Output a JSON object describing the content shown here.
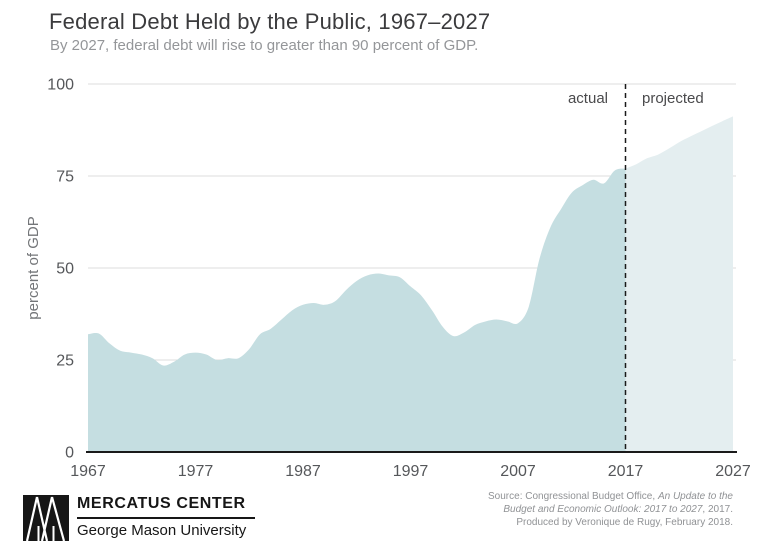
{
  "header": {
    "title": "Federal Debt Held by the Public, 1967–2027",
    "subtitle": "By 2027, federal debt will rise to greater than 90 percent of GDP."
  },
  "chart_data": {
    "type": "area",
    "title": "Federal Debt Held by the Public, 1967–2027",
    "xlabel": "",
    "ylabel": "percent of GDP",
    "ylim": [
      0,
      100
    ],
    "x_range": [
      1967,
      2027
    ],
    "yticks": [
      0,
      25,
      50,
      75,
      100
    ],
    "xticks": [
      1967,
      1977,
      1987,
      1997,
      2007,
      2017,
      2027
    ],
    "grid": "horizontal-only",
    "divider_year": 2017,
    "annotations": {
      "left": "actual",
      "right": "projected"
    },
    "series": [
      {
        "name": "actual",
        "start_year": 1967,
        "values": [
          32.0,
          32.2,
          29.5,
          27.5,
          27.0,
          26.5,
          25.5,
          23.5,
          24.5,
          26.5,
          27.0,
          26.5,
          25.0,
          25.5,
          25.5,
          28.0,
          32.0,
          33.5,
          36.0,
          38.5,
          40.0,
          40.5,
          40.0,
          41.0,
          44.0,
          46.5,
          48.0,
          48.5,
          48.0,
          47.5,
          45.0,
          42.5,
          38.5,
          34.0,
          31.5,
          32.5,
          34.5,
          35.5,
          36.0,
          35.5,
          35.0,
          39.5,
          52.5,
          61.0,
          66.0,
          70.5,
          72.5,
          74.0,
          73.0,
          76.5,
          77.0
        ],
        "fill": "#c5dee1"
      },
      {
        "name": "projected",
        "start_year": 2017,
        "values": [
          77.0,
          78.2,
          79.8,
          80.8,
          82.4,
          84.2,
          85.7,
          87.1,
          88.5,
          89.9,
          91.2
        ],
        "fill": "#e4eef0"
      }
    ],
    "colors": {
      "actual_fill": "#c5dee1",
      "projected_fill": "#e4eef0",
      "grid": "#dcdcdc",
      "axis": "#1a1a1a",
      "tick_text": "#55575a",
      "axis_title_text": "#737578",
      "annotation_text": "#4a4a4c",
      "title_text": "#3b3b3d",
      "subtitle_text": "#949699",
      "source_text": "#909295"
    }
  },
  "footer": {
    "brand_title": "MERCATUS CENTER",
    "brand_subtitle": "George Mason University",
    "source": {
      "line1_normal": "Source: Congressional Budget Office, ",
      "line1_italic": "An Update to the",
      "line2_italic": "Budget and Economic Outlook: 2017 to 2027",
      "line2_normal": ", 2017.",
      "line3": "Produced by Veronique de Rugy, February 2018."
    }
  }
}
